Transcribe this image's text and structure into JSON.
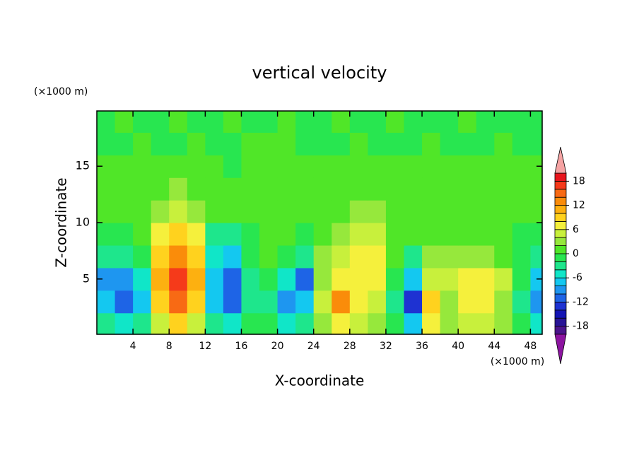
{
  "chart_data": {
    "type": "contour",
    "title": "vertical velocity",
    "xlabel": "X-coordinate",
    "ylabel": "Z-coordinate",
    "x_unit_label": "(×1000 m)",
    "y_unit_label": "(×1000 m)",
    "x": [
      1,
      3,
      5,
      7,
      9,
      11,
      13,
      15,
      17,
      19,
      21,
      23,
      25,
      27,
      29,
      31,
      33,
      35,
      37,
      39,
      41,
      43,
      45,
      47,
      49
    ],
    "y": [
      1,
      3,
      5,
      7,
      9,
      11,
      13,
      15,
      17,
      19
    ],
    "z": [
      [
        -4,
        -6,
        -4,
        4,
        8,
        4,
        -4,
        -6,
        -2,
        -2,
        -6,
        -4,
        2,
        6,
        4,
        3,
        -2,
        -8,
        6,
        2,
        4,
        4,
        2,
        -2,
        -6
      ],
      [
        -8,
        -12,
        -8,
        8,
        14,
        8,
        -8,
        -12,
        -4,
        -4,
        -10,
        -8,
        4,
        12,
        6,
        4,
        -4,
        -14,
        8,
        3,
        6,
        6,
        3,
        -4,
        -10
      ],
      [
        -10,
        -10,
        -6,
        10,
        17,
        10,
        -8,
        -12,
        -4,
        -2,
        -6,
        -11,
        2,
        6,
        6,
        6,
        -2,
        -8,
        4,
        4,
        6,
        6,
        4,
        -2,
        -8
      ],
      [
        -4,
        -4,
        -2,
        8,
        12,
        8,
        -6,
        -8,
        -2,
        0,
        -2,
        -4,
        2,
        4,
        6,
        6,
        0,
        -4,
        2,
        2,
        2,
        2,
        1,
        -1,
        -3
      ],
      [
        -1,
        -2,
        0,
        6,
        8,
        6,
        -3,
        -3,
        -1,
        0,
        0,
        -1,
        1,
        2,
        4,
        5,
        1,
        0,
        1,
        1,
        1,
        1,
        1,
        -1,
        -2
      ],
      [
        1,
        1,
        1,
        3,
        5,
        3,
        0,
        1,
        1,
        1,
        1,
        1,
        1,
        1,
        2,
        2,
        1,
        1,
        1,
        1,
        1,
        1,
        1,
        1,
        0
      ],
      [
        1,
        1,
        1,
        1,
        2,
        1,
        1,
        1,
        1,
        1,
        1,
        1,
        1,
        1,
        1,
        1,
        1,
        1,
        1,
        1,
        1,
        1,
        1,
        1,
        1
      ],
      [
        1,
        0,
        1,
        1,
        1,
        1,
        1,
        -1,
        1,
        1,
        1,
        0,
        1,
        1,
        1,
        1,
        1,
        0,
        1,
        1,
        1,
        1,
        1,
        1,
        1
      ],
      [
        -1,
        -1,
        0,
        -1,
        -1,
        0,
        -1,
        -1,
        0,
        1,
        0,
        -1,
        -1,
        -1,
        0,
        -1,
        -1,
        -1,
        0,
        -1,
        -1,
        -1,
        0,
        -1,
        -1
      ],
      [
        -1,
        0,
        -1,
        -1,
        0,
        -1,
        -1,
        0,
        -1,
        -1,
        0,
        -1,
        -1,
        0,
        -1,
        -1,
        0,
        -1,
        -1,
        -1,
        0,
        -1,
        -1,
        -1,
        -1
      ]
    ],
    "levels": [
      -20,
      -18,
      -16,
      -14,
      -12,
      -10,
      -8,
      -6,
      -4,
      -2,
      0,
      2,
      4,
      6,
      8,
      10,
      12,
      14,
      16,
      18,
      20
    ],
    "colors": [
      "#8c14a0",
      "#4b148c",
      "#281496",
      "#1414b4",
      "#1e32d2",
      "#1e64e6",
      "#1e96f0",
      "#14c8f0",
      "#10e6c8",
      "#1ee68c",
      "#28e650",
      "#50e628",
      "#96e83c",
      "#c8f03c",
      "#f5f03c",
      "#ffd21e",
      "#fdb010",
      "#fa8c0a",
      "#f86a14",
      "#f53a1a",
      "#e8141c",
      "#f5a3a3"
    ],
    "xlim": [
      0,
      49.3
    ],
    "ylim": [
      0.1,
      19.9
    ],
    "xticks": [
      4,
      8,
      12,
      16,
      20,
      24,
      28,
      32,
      36,
      40,
      44,
      48
    ],
    "yticks": [
      5,
      10,
      15
    ],
    "colorbar_ticks": [
      -18,
      -12,
      -6,
      0,
      6,
      12,
      18
    ]
  }
}
